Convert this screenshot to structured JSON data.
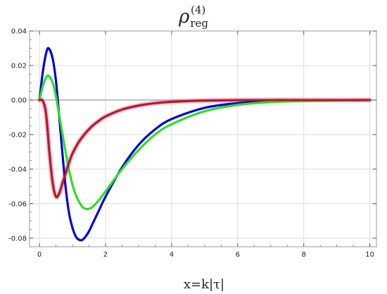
{
  "chart_data": {
    "type": "line",
    "title": {
      "base": "ρ",
      "superscript": "(4)",
      "subscript": "reg"
    },
    "xlabel": "x=k|τ|",
    "ylabel": "",
    "xlim": [
      -0.3,
      10.2
    ],
    "ylim": [
      -0.085,
      0.04
    ],
    "x_ticks": [
      0,
      2,
      4,
      6,
      8,
      10
    ],
    "y_ticks": [
      0.04,
      0.02,
      0.0,
      -0.02,
      -0.04,
      -0.06,
      -0.08
    ],
    "x_tick_labels": [
      "0",
      "2",
      "4",
      "6",
      "8",
      "10"
    ],
    "y_tick_labels": [
      "0.04",
      "0.02",
      "0.00",
      "-0.02",
      "-0.04",
      "-0.06",
      "-0.08"
    ],
    "grid": true,
    "legend": "none",
    "series": [
      {
        "color": "#e060e0",
        "x": [
          0,
          0.1,
          0.2,
          0.3,
          0.4,
          0.5,
          0.6,
          0.7,
          0.8,
          0.9,
          1.0,
          1.2,
          1.4,
          1.6,
          1.8,
          2.0,
          2.5,
          3.0,
          3.5,
          4.0,
          5.0,
          6.0,
          7.0,
          8.0,
          9.0,
          10.0
        ],
        "values": [
          0,
          -0.0005,
          -0.008,
          -0.03,
          -0.048,
          -0.056,
          -0.054,
          -0.048,
          -0.042,
          -0.036,
          -0.031,
          -0.024,
          -0.019,
          -0.015,
          -0.012,
          -0.0095,
          -0.0055,
          -0.0032,
          -0.0018,
          -0.001,
          -0.0003,
          -0.0001,
          0,
          0,
          0,
          0
        ]
      },
      {
        "color": "#0000e0",
        "x": [
          0,
          0.1,
          0.2,
          0.28,
          0.4,
          0.5,
          0.6,
          0.7,
          0.8,
          0.9,
          1.0,
          1.1,
          1.2,
          1.3,
          1.4,
          1.5,
          1.6,
          1.8,
          2.0,
          2.5,
          3.0,
          3.5,
          4.0,
          5.0,
          6.0,
          7.0,
          8.0,
          9.0,
          10.0
        ],
        "values": [
          0,
          0.016,
          0.027,
          0.03,
          0.024,
          0.011,
          -0.01,
          -0.032,
          -0.052,
          -0.066,
          -0.074,
          -0.079,
          -0.081,
          -0.081,
          -0.079,
          -0.076,
          -0.072,
          -0.064,
          -0.056,
          -0.039,
          -0.026,
          -0.017,
          -0.011,
          -0.0045,
          -0.0018,
          -0.0007,
          -0.0003,
          -0.0001,
          0
        ]
      },
      {
        "color": "#30dd20",
        "x": [
          0,
          0.1,
          0.2,
          0.28,
          0.4,
          0.5,
          0.6,
          0.7,
          0.8,
          0.9,
          1.0,
          1.1,
          1.2,
          1.3,
          1.4,
          1.5,
          1.6,
          1.8,
          2.0,
          2.5,
          3.0,
          3.5,
          4.0,
          5.0,
          6.0,
          7.0,
          8.0,
          9.0,
          10.0
        ],
        "values": [
          0,
          0.008,
          0.013,
          0.014,
          0.01,
          0.002,
          -0.009,
          -0.02,
          -0.031,
          -0.041,
          -0.049,
          -0.055,
          -0.059,
          -0.062,
          -0.063,
          -0.063,
          -0.062,
          -0.058,
          -0.053,
          -0.04,
          -0.029,
          -0.02,
          -0.014,
          -0.0065,
          -0.0028,
          -0.0012,
          -0.0005,
          -0.0002,
          0
        ]
      },
      {
        "color": "#b02010",
        "x": [
          0,
          0.1,
          0.2,
          0.3,
          0.4,
          0.5,
          0.6,
          0.7,
          0.8,
          0.9,
          1.0,
          1.2,
          1.4,
          1.6,
          1.8,
          2.0,
          2.5,
          3.0,
          3.5,
          4.0,
          5.0,
          6.0,
          7.0,
          8.0,
          9.0,
          10.0
        ],
        "values": [
          0,
          -0.0005,
          -0.008,
          -0.03,
          -0.048,
          -0.056,
          -0.054,
          -0.048,
          -0.042,
          -0.036,
          -0.031,
          -0.024,
          -0.019,
          -0.015,
          -0.012,
          -0.0095,
          -0.0055,
          -0.0032,
          -0.0018,
          -0.001,
          -0.0003,
          -0.0001,
          0,
          0,
          0,
          0
        ]
      }
    ]
  }
}
